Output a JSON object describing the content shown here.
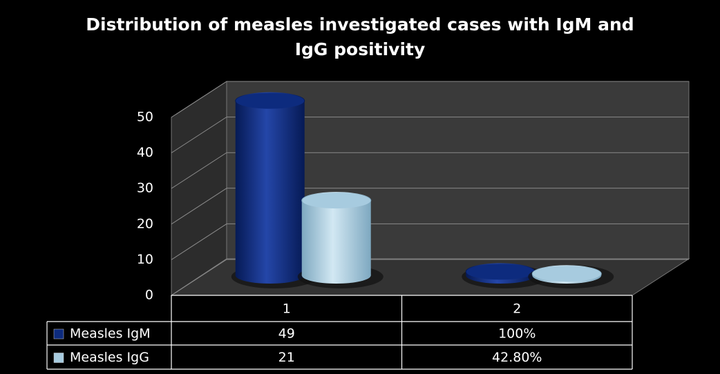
{
  "chart_data": {
    "type": "bar3d",
    "title": "Distribution of  measles investigated cases with IgM and IgG positivity",
    "categories": [
      "1",
      "2"
    ],
    "series": [
      {
        "name": "Measles IgM",
        "color": "#0d2b7e",
        "values": [
          49,
          1
        ],
        "value_labels": [
          "49",
          "100%"
        ]
      },
      {
        "name": "Measles IgG",
        "color": "#a7cbdf",
        "values": [
          21,
          0.428
        ],
        "value_labels": [
          "21",
          "42.80%"
        ]
      }
    ],
    "ylim": [
      0,
      50
    ],
    "yticks": [
      0,
      10,
      20,
      30,
      40,
      50
    ],
    "grid": true,
    "data_table": true
  }
}
